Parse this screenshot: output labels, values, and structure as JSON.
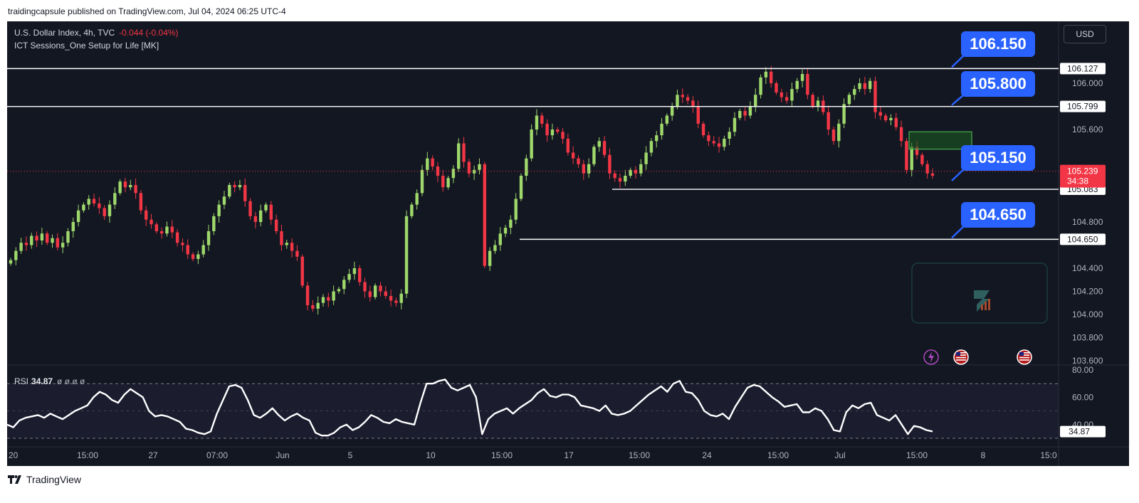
{
  "header": {
    "published": "traidingcapsule published on TradingView.com, Jul 04, 2024 06:25 UTC-4"
  },
  "legend": {
    "symbol": "U.S. Dollar Index, 4h, TVC",
    "change": "-0.044 (-0.04%)",
    "indicator": "ICT Sessions_One Setup for Life [MK]"
  },
  "currency_button": "USD",
  "rsi_legend": {
    "label": "RSI",
    "value": "34.87",
    "zeros": "ø ø ø ø"
  },
  "annotations": {
    "b1": "106.150",
    "b2": "105.800",
    "b3": "105.150",
    "b4": "104.650"
  },
  "price_tags": {
    "lvl_106127": "106.127",
    "lvl_105799": "105.799",
    "current": "105.239",
    "countdown": "34:38",
    "lvl_105083": "105.083",
    "lvl_104650": "104.650",
    "rsi_current": "34.87"
  },
  "footer": {
    "brand": "TradingView"
  },
  "colors": {
    "background": "#131722",
    "up": "#26a69a",
    "up_candle": "#9fd86b",
    "down": "#f23645",
    "annotation": "#2962ff",
    "level_line": "#ffffff",
    "rsi_line": "#ffffff",
    "zone": "#1b5e20"
  },
  "chart_data": [
    {
      "type": "candlestick",
      "title": "U.S. Dollar Index, 4h, TVC",
      "ylim": [
        103.55,
        106.35
      ],
      "y_ticks": [
        "106.000",
        "105.600",
        "104.800",
        "104.400",
        "104.200",
        "104.000",
        "103.800",
        "103.600"
      ],
      "x_tick_labels": [
        "20",
        "15:00",
        "27",
        "07:00",
        "Jun",
        "5",
        "10",
        "15:00",
        "17",
        "15:00",
        "24",
        "15:00",
        "Jul",
        "15:00",
        "8",
        "15:0"
      ],
      "horizontal_levels": [
        106.127,
        105.799,
        105.083,
        104.65
      ],
      "current_price": 105.239,
      "zone": {
        "low": 105.43,
        "high": 105.58
      },
      "ohlc_close_path": [
        104.47,
        104.55,
        104.62,
        104.6,
        104.68,
        104.64,
        104.7,
        104.62,
        104.66,
        104.58,
        104.62,
        104.72,
        104.8,
        104.9,
        104.95,
        105.0,
        104.96,
        104.92,
        104.85,
        104.95,
        105.05,
        105.15,
        105.1,
        105.12,
        105.05,
        104.9,
        104.82,
        104.78,
        104.72,
        104.7,
        104.76,
        104.71,
        104.62,
        104.6,
        104.52,
        104.48,
        104.52,
        104.6,
        104.72,
        104.85,
        104.95,
        105.02,
        105.12,
        105.1,
        105.12,
        104.98,
        104.85,
        104.8,
        104.9,
        104.95,
        104.82,
        104.72,
        104.6,
        104.62,
        104.55,
        104.5,
        104.25,
        104.08,
        104.05,
        104.1,
        104.15,
        104.12,
        104.2,
        104.22,
        104.3,
        104.35,
        104.4,
        104.28,
        104.2,
        104.15,
        104.25,
        104.2,
        104.16,
        104.12,
        104.1,
        104.18,
        104.85,
        104.95,
        105.05,
        105.25,
        105.35,
        105.28,
        105.2,
        105.1,
        105.18,
        105.26,
        105.48,
        105.32,
        105.22,
        105.25,
        105.3,
        104.42,
        104.55,
        104.6,
        104.7,
        104.75,
        104.82,
        105.0,
        105.2,
        105.35,
        105.6,
        105.72,
        105.65,
        105.55,
        105.6,
        105.58,
        105.52,
        105.4,
        105.35,
        105.3,
        105.22,
        105.3,
        105.45,
        105.5,
        105.38,
        105.22,
        105.18,
        105.15,
        105.2,
        105.25,
        105.22,
        105.3,
        105.4,
        105.5,
        105.55,
        105.65,
        105.72,
        105.8,
        105.9,
        105.88,
        105.85,
        105.8,
        105.65,
        105.55,
        105.5,
        105.48,
        105.45,
        105.52,
        105.58,
        105.7,
        105.76,
        105.72,
        105.8,
        105.9,
        106.05,
        106.1,
        106.0,
        105.92,
        105.88,
        105.85,
        105.95,
        106.02,
        106.08,
        105.9,
        105.8,
        105.85,
        105.75,
        105.6,
        105.5,
        105.65,
        105.82,
        105.9,
        105.95,
        106.0,
        105.95,
        106.02,
        105.75,
        105.72,
        105.68,
        105.7,
        105.62,
        105.5,
        105.25,
        105.45,
        105.38,
        105.3,
        105.22,
        105.2
      ]
    },
    {
      "type": "line",
      "name": "RSI",
      "ylim": [
        30,
        80
      ],
      "y_ticks": [
        "80.00",
        "60.00",
        "40.00"
      ],
      "bands": [
        30,
        70
      ],
      "values": [
        40,
        38,
        43,
        45,
        46,
        47,
        45,
        48,
        46,
        44,
        47,
        50,
        52,
        54,
        60,
        64,
        62,
        58,
        56,
        62,
        66,
        63,
        60,
        50,
        46,
        47,
        46,
        44,
        42,
        37,
        36,
        34,
        33,
        35,
        48,
        58,
        68,
        69,
        67,
        58,
        47,
        45,
        48,
        52,
        47,
        43,
        46,
        48,
        45,
        43,
        34,
        32,
        32,
        34,
        38,
        40,
        36,
        38,
        42,
        47,
        45,
        42,
        41,
        44,
        42,
        41,
        40,
        56,
        70,
        70,
        72,
        73,
        67,
        65,
        67,
        69,
        60,
        33,
        44,
        48,
        50,
        52,
        48,
        52,
        55,
        58,
        63,
        66,
        61,
        60,
        62,
        62,
        60,
        54,
        53,
        52,
        50,
        54,
        48,
        47,
        48,
        50,
        54,
        58,
        62,
        65,
        68,
        64,
        70,
        72,
        64,
        63,
        58,
        50,
        47,
        46,
        48,
        44,
        53,
        60,
        67,
        69,
        68,
        64,
        60,
        57,
        53,
        54,
        55,
        49,
        49,
        52,
        50,
        44,
        36,
        35,
        49,
        54,
        52,
        55,
        56,
        47,
        45,
        43,
        47,
        40,
        33,
        39,
        38,
        36,
        35
      ]
    }
  ]
}
